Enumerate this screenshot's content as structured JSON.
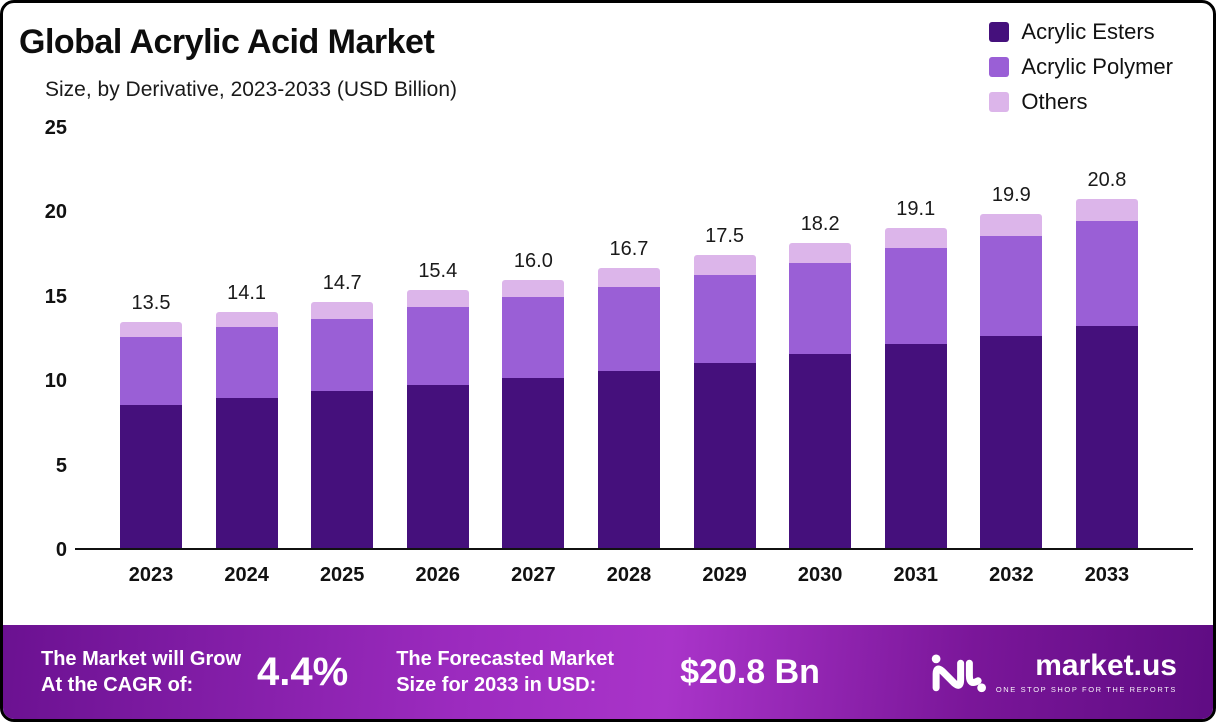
{
  "header": {
    "title": "Global Acrylic Acid Market",
    "subtitle": "Size, by Derivative, 2023-2033 (USD Billion)"
  },
  "chart_data": {
    "type": "bar",
    "stacked": true,
    "title": "Global Acrylic Acid Market",
    "subtitle": "Size, by Derivative, 2023-2033 (USD Billion)",
    "categories": [
      "2023",
      "2024",
      "2025",
      "2026",
      "2027",
      "2028",
      "2029",
      "2030",
      "2031",
      "2032",
      "2033"
    ],
    "series": [
      {
        "name": "Acrylic Esters",
        "color": "#45107c",
        "values": [
          8.6,
          9.0,
          9.4,
          9.8,
          10.2,
          10.6,
          11.1,
          11.6,
          12.2,
          12.7,
          13.3
        ]
      },
      {
        "name": "Acrylic Polymer",
        "color": "#9a5fd6",
        "values": [
          4.0,
          4.2,
          4.3,
          4.6,
          4.8,
          5.0,
          5.2,
          5.4,
          5.7,
          5.9,
          6.2
        ]
      },
      {
        "name": "Others",
        "color": "#dcb5ea",
        "values": [
          0.9,
          0.9,
          1.0,
          1.0,
          1.0,
          1.1,
          1.2,
          1.2,
          1.2,
          1.3,
          1.3
        ]
      }
    ],
    "totals": [
      13.5,
      14.1,
      14.7,
      15.4,
      16.0,
      16.7,
      17.5,
      18.2,
      19.1,
      19.9,
      20.8
    ],
    "ylim": [
      0,
      25
    ],
    "yticks": [
      0,
      5,
      10,
      15,
      20,
      25
    ],
    "xlabel": "",
    "ylabel": "",
    "grid": false,
    "legend_position": "top-right"
  },
  "footer": {
    "cagr_label": "The Market will Grow\nAt the CAGR of:",
    "cagr_value": "4.4%",
    "forecast_label": "The Forecasted Market\nSize for 2033 in USD:",
    "forecast_value": "$20.8 Bn",
    "brand": "market.us",
    "brand_tagline": "ONE STOP SHOP FOR THE REPORTS"
  }
}
